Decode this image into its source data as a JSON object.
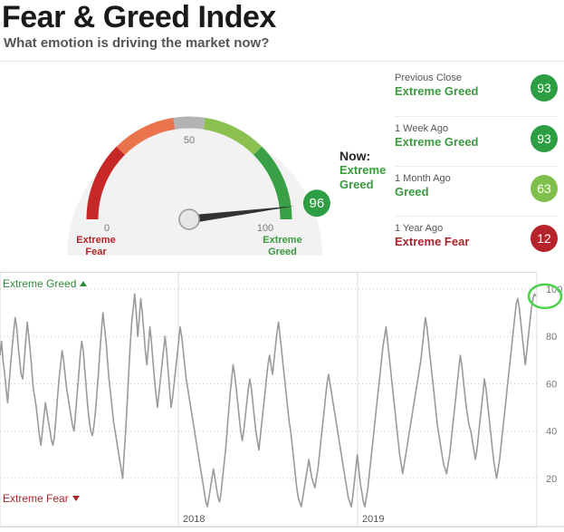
{
  "header": {
    "title": "Fear & Greed Index",
    "subtitle": "What emotion is driving the market now?"
  },
  "gauge": {
    "value": 96,
    "value_label": "96",
    "min_label": "0",
    "mid_label": "50",
    "max_label": "100",
    "left_label_line1": "Extreme",
    "left_label_line2": "Fear",
    "right_label_line1": "Extreme",
    "right_label_line2": "Greed",
    "now_label": "Now:",
    "now_value": "Extreme Greed"
  },
  "history": [
    {
      "label": "Previous Close",
      "rating": "Extreme Greed",
      "value": "93",
      "color": "#2e9e44"
    },
    {
      "label": "1 Week Ago",
      "rating": "Extreme Greed",
      "value": "93",
      "color": "#2e9e44"
    },
    {
      "label": "1 Month Ago",
      "rating": "Greed",
      "value": "63",
      "color": "#7ec04b"
    },
    {
      "label": "1 Year Ago",
      "rating": "Extreme Fear",
      "value": "12",
      "color": "#b5242a"
    }
  ],
  "colors": {
    "extreme_fear": "#c62828",
    "fear": "#e9734a",
    "neutral": "#b3b3b3",
    "greed": "#8cc152",
    "extreme_greed": "#3aa047",
    "line": "#999999"
  },
  "chart_data": {
    "type": "line",
    "top_label": "Extreme Greed",
    "bottom_label": "Extreme Fear",
    "x_tick_labels": [
      "2018",
      "2019"
    ],
    "y_ticks": [
      20,
      40,
      60,
      80,
      100
    ],
    "ylim": [
      0,
      105
    ],
    "grid": true,
    "series": [
      {
        "values": [
          72,
          78,
          70,
          65,
          58,
          52,
          60,
          68,
          75,
          82,
          88,
          84,
          76,
          70,
          64,
          62,
          70,
          78,
          86,
          80,
          74,
          66,
          58,
          54,
          50,
          44,
          38,
          34,
          40,
          46,
          52,
          48,
          44,
          40,
          36,
          34,
          38,
          46,
          54,
          62,
          68,
          74,
          70,
          64,
          58,
          54,
          50,
          46,
          42,
          40,
          48,
          56,
          64,
          72,
          78,
          74,
          66,
          58,
          50,
          44,
          40,
          38,
          42,
          48,
          56,
          64,
          74,
          82,
          90,
          84,
          78,
          70,
          62,
          56,
          50,
          44,
          40,
          36,
          32,
          28,
          24,
          20,
          30,
          40,
          52,
          64,
          76,
          86,
          92,
          98,
          90,
          80,
          88,
          96,
          90,
          82,
          74,
          68,
          76,
          84,
          78,
          70,
          62,
          56,
          50,
          56,
          62,
          68,
          74,
          80,
          74,
          66,
          58,
          50,
          54,
          60,
          66,
          72,
          78,
          84,
          80,
          74,
          68,
          62,
          58,
          54,
          50,
          46,
          42,
          38,
          34,
          30,
          26,
          22,
          18,
          14,
          10,
          8,
          12,
          16,
          20,
          24,
          20,
          16,
          12,
          10,
          14,
          20,
          26,
          32,
          40,
          48,
          56,
          62,
          68,
          64,
          58,
          52,
          46,
          40,
          36,
          40,
          46,
          52,
          58,
          62,
          58,
          52,
          46,
          40,
          36,
          32,
          38,
          44,
          50,
          56,
          62,
          68,
          72,
          68,
          64,
          70,
          76,
          82,
          86,
          80,
          74,
          68,
          62,
          56,
          50,
          44,
          40,
          34,
          28,
          22,
          16,
          12,
          10,
          8,
          12,
          16,
          20,
          24,
          28,
          24,
          20,
          18,
          16,
          20,
          24,
          30,
          36,
          42,
          48,
          54,
          60,
          64,
          60,
          56,
          52,
          48,
          44,
          40,
          36,
          32,
          28,
          24,
          20,
          16,
          12,
          10,
          8,
          12,
          18,
          24,
          30,
          24,
          18,
          14,
          10,
          8,
          12,
          16,
          22,
          28,
          34,
          40,
          46,
          52,
          58,
          64,
          70,
          76,
          80,
          84,
          78,
          72,
          66,
          60,
          54,
          48,
          42,
          36,
          30,
          26,
          22,
          26,
          30,
          34,
          38,
          42,
          46,
          50,
          54,
          58,
          62,
          66,
          70,
          76,
          82,
          88,
          84,
          78,
          72,
          66,
          60,
          54,
          48,
          42,
          38,
          34,
          30,
          26,
          24,
          22,
          26,
          30,
          36,
          42,
          48,
          54,
          60,
          66,
          72,
          68,
          62,
          56,
          50,
          46,
          42,
          40,
          36,
          32,
          28,
          32,
          38,
          44,
          50,
          56,
          62,
          58,
          52,
          46,
          40,
          34,
          28,
          24,
          20,
          24,
          28,
          34,
          40,
          46,
          52,
          58,
          64,
          70,
          76,
          82,
          88,
          94,
          96,
          92,
          86,
          80,
          74,
          68,
          74,
          80,
          86,
          92,
          96,
          98,
          97
        ]
      }
    ]
  }
}
